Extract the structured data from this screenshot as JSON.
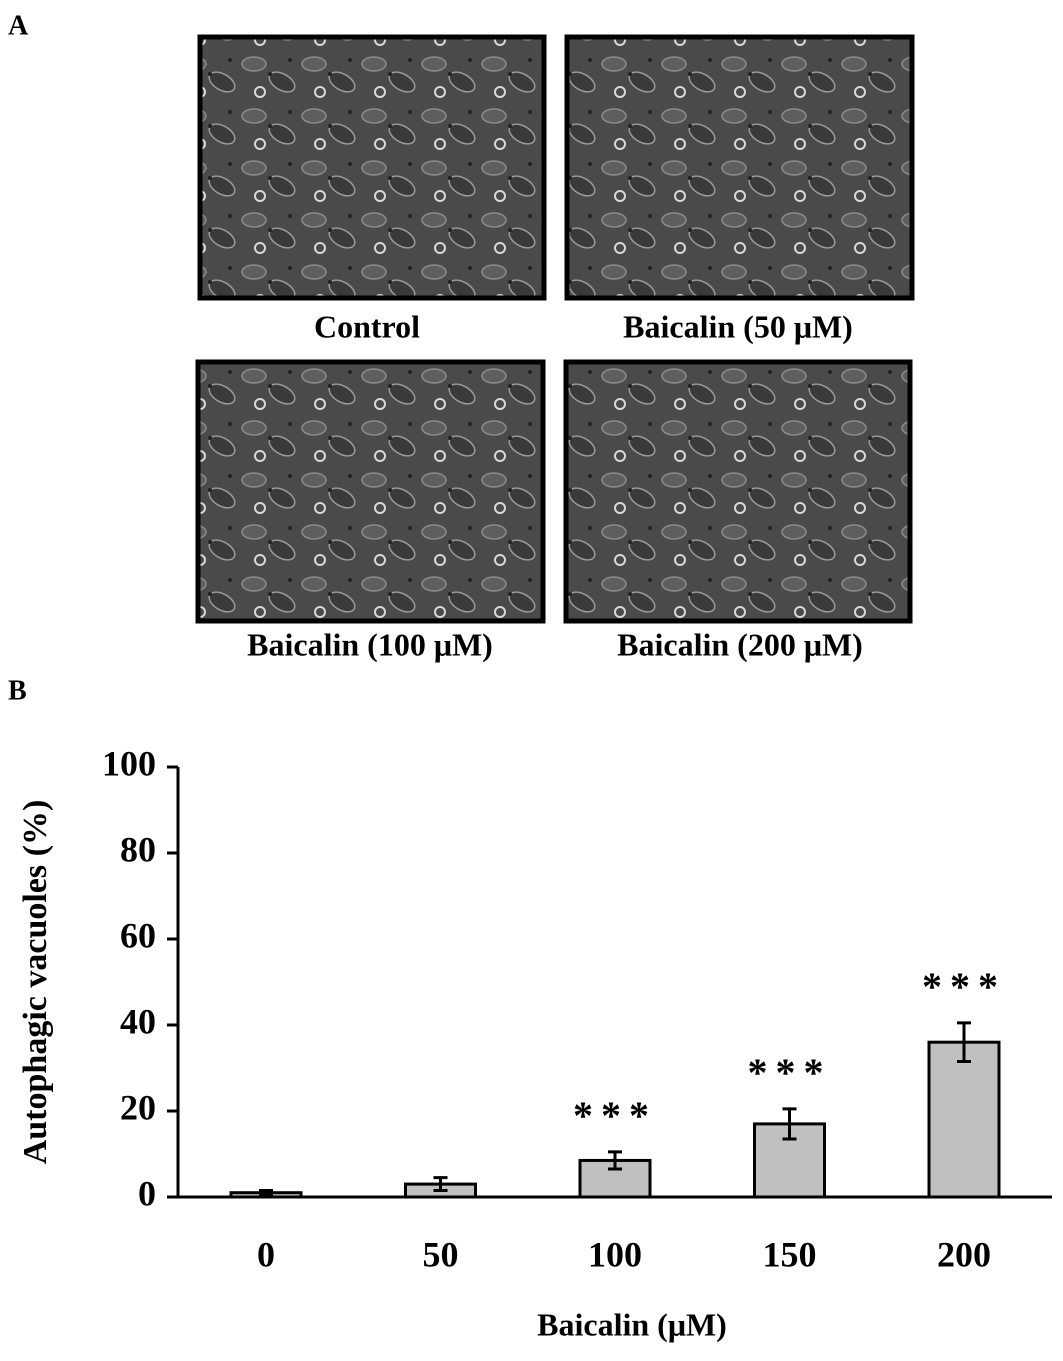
{
  "panel_a": {
    "label": "A",
    "captions": [
      "Control",
      "Baicalin (50 μM)",
      "Baicalin (100 μM)",
      "Baicalin (200 μM)"
    ]
  },
  "chart_data": {
    "type": "bar",
    "panel_label": "B",
    "x_label": "Baicalin (μM)",
    "y_label": "Autophagic vacuoles (%)",
    "categories": [
      "0",
      "50",
      "100",
      "150",
      "200"
    ],
    "values": [
      1,
      3,
      8.5,
      17,
      36
    ],
    "errors": [
      0.5,
      1.5,
      2,
      3.5,
      4.5
    ],
    "significance": [
      null,
      null,
      "***",
      "***",
      "***"
    ],
    "color": "#c0c0c0",
    "ylim": [
      0,
      100
    ],
    "yticks": [
      0,
      20,
      40,
      60,
      80,
      100
    ]
  }
}
